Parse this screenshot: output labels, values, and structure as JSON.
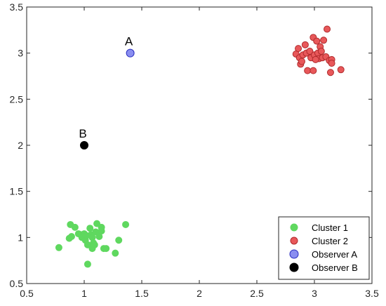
{
  "chart_data": {
    "type": "scatter",
    "title": "",
    "xlabel": "",
    "ylabel": "",
    "xlim": [
      0.5,
      3.5
    ],
    "ylim": [
      0.5,
      3.5
    ],
    "xticks": [
      "0.5",
      "1",
      "1.5",
      "2",
      "2.5",
      "3",
      "3.5"
    ],
    "yticks": [
      "0.5",
      "1",
      "1.5",
      "2",
      "2.5",
      "3",
      "3.5"
    ],
    "grid": false,
    "legend_position": "bottom-right",
    "series": [
      {
        "name": "Cluster 1",
        "color": "#5fd85f",
        "edge": "#5fd85f",
        "points": [
          [
            0.78,
            0.89
          ],
          [
            0.87,
            0.99
          ],
          [
            0.88,
            1.14
          ],
          [
            0.89,
            1.01
          ],
          [
            0.92,
            1.11
          ],
          [
            0.95,
            1.04
          ],
          [
            0.97,
            1.03
          ],
          [
            0.98,
            1.0
          ],
          [
            1.0,
            1.04
          ],
          [
            1.01,
            0.97
          ],
          [
            1.02,
            1.02
          ],
          [
            1.03,
            0.92
          ],
          [
            1.05,
            1.1
          ],
          [
            1.06,
            1.03
          ],
          [
            1.07,
            0.88
          ],
          [
            1.07,
            1.0
          ],
          [
            1.08,
            0.94
          ],
          [
            1.09,
            0.92
          ],
          [
            1.1,
            1.06
          ],
          [
            1.11,
            1.15
          ],
          [
            1.13,
            1.01
          ],
          [
            1.15,
            1.07
          ],
          [
            1.15,
            1.11
          ],
          [
            1.17,
            0.88
          ],
          [
            1.19,
            0.88
          ],
          [
            1.27,
            0.83
          ],
          [
            1.3,
            0.97
          ],
          [
            1.36,
            1.14
          ],
          [
            1.03,
            0.71
          ]
        ]
      },
      {
        "name": "Cluster 2",
        "color": "#e8585a",
        "edge": "#b02a2c",
        "points": [
          [
            2.84,
            2.99
          ],
          [
            2.86,
            3.05
          ],
          [
            2.87,
            2.95
          ],
          [
            2.88,
            2.88
          ],
          [
            2.9,
            2.98
          ],
          [
            2.92,
            3.09
          ],
          [
            2.93,
            3.0
          ],
          [
            2.94,
            2.81
          ],
          [
            2.96,
            3.02
          ],
          [
            2.97,
            2.95
          ],
          [
            2.99,
            3.17
          ],
          [
            2.99,
            2.81
          ],
          [
            3.0,
            2.98
          ],
          [
            3.02,
            3.13
          ],
          [
            3.03,
            3.0
          ],
          [
            3.04,
            2.94
          ],
          [
            3.05,
            3.07
          ],
          [
            3.06,
            3.02
          ],
          [
            3.07,
            2.95
          ],
          [
            3.08,
            3.14
          ],
          [
            3.1,
            2.96
          ],
          [
            3.11,
            3.26
          ],
          [
            3.13,
            2.92
          ],
          [
            3.14,
            2.79
          ],
          [
            3.15,
            2.93
          ],
          [
            3.15,
            2.89
          ],
          [
            3.23,
            2.82
          ],
          [
            2.89,
            2.91
          ],
          [
            3.01,
            2.93
          ]
        ]
      },
      {
        "name": "Observer A",
        "color": "#8a8ef0",
        "edge": "#2a2ec0",
        "points": [
          [
            1.4,
            3.0
          ]
        ],
        "label": "A"
      },
      {
        "name": "Observer B",
        "color": "#000000",
        "edge": "#000000",
        "points": [
          [
            1.0,
            2.0
          ]
        ],
        "label": "B"
      }
    ]
  }
}
